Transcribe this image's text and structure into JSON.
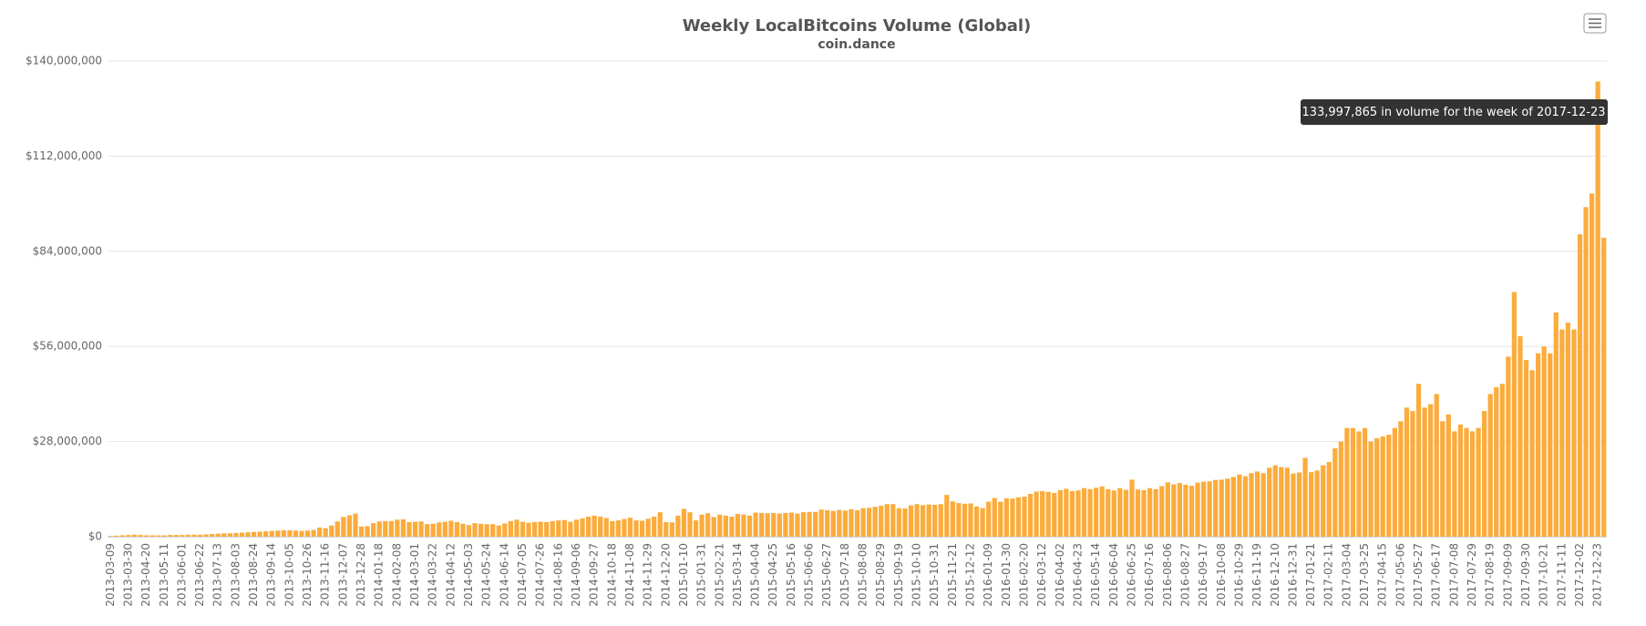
{
  "chart_data": {
    "type": "bar",
    "title": "Weekly LocalBitcoins Volume (Global)",
    "subtitle": "coin.dance",
    "tooltip": "133,997,865 in volume for the week of 2017-12-23",
    "color": "#fbac3c",
    "grid": true,
    "ylim": [
      0,
      140000000
    ],
    "yticks": [
      {
        "value": 0,
        "label": "$0"
      },
      {
        "value": 28000000,
        "label": "$28,000,000"
      },
      {
        "value": 56000000,
        "label": "$56,000,000"
      },
      {
        "value": 84000000,
        "label": "$84,000,000"
      },
      {
        "value": 112000000,
        "label": "$112,000,000"
      },
      {
        "value": 140000000,
        "label": "$140,000,000"
      }
    ],
    "categories": [
      "2013-03-09",
      null,
      null,
      "2013-03-30",
      null,
      null,
      "2013-04-20",
      null,
      null,
      "2013-05-11",
      null,
      null,
      "2013-06-01",
      null,
      null,
      "2013-06-22",
      null,
      null,
      "2013-07-13",
      null,
      null,
      "2013-08-03",
      null,
      null,
      "2013-08-24",
      null,
      null,
      "2013-09-14",
      null,
      null,
      "2013-10-05",
      null,
      null,
      "2013-10-26",
      null,
      null,
      "2013-11-16",
      null,
      null,
      "2013-12-07",
      null,
      null,
      "2013-12-28",
      null,
      null,
      "2014-01-18",
      null,
      null,
      "2014-02-08",
      null,
      null,
      "2014-03-01",
      null,
      null,
      "2014-03-22",
      null,
      null,
      "2014-04-12",
      null,
      null,
      "2014-05-03",
      null,
      null,
      "2014-05-24",
      null,
      null,
      "2014-06-14",
      null,
      null,
      "2014-07-05",
      null,
      null,
      "2014-07-26",
      null,
      null,
      "2014-08-16",
      null,
      null,
      "2014-09-06",
      null,
      null,
      "2014-09-27",
      null,
      null,
      "2014-10-18",
      null,
      null,
      "2014-11-08",
      null,
      null,
      "2014-11-29",
      null,
      null,
      "2014-12-20",
      null,
      null,
      "2015-01-10",
      null,
      null,
      "2015-01-31",
      null,
      null,
      "2015-02-21",
      null,
      null,
      "2015-03-14",
      null,
      null,
      "2015-04-04",
      null,
      null,
      "2015-04-25",
      null,
      null,
      "2015-05-16",
      null,
      null,
      "2015-06-06",
      null,
      null,
      "2015-06-27",
      null,
      null,
      "2015-07-18",
      null,
      null,
      "2015-08-08",
      null,
      null,
      "2015-08-29",
      null,
      null,
      "2015-09-19",
      null,
      null,
      "2015-10-10",
      null,
      null,
      "2015-10-31",
      null,
      null,
      "2015-11-21",
      null,
      null,
      "2015-12-12",
      null,
      null,
      "2016-01-09",
      null,
      null,
      "2016-01-30",
      null,
      null,
      "2016-02-20",
      null,
      null,
      "2016-03-12",
      null,
      null,
      "2016-04-02",
      null,
      null,
      "2016-04-23",
      null,
      null,
      "2016-05-14",
      null,
      null,
      "2016-06-04",
      null,
      null,
      "2016-06-25",
      null,
      null,
      "2016-07-16",
      null,
      null,
      "2016-08-06",
      null,
      null,
      "2016-08-27",
      null,
      null,
      "2016-09-17",
      null,
      null,
      "2016-10-08",
      null,
      null,
      "2016-10-29",
      null,
      null,
      "2016-11-19",
      null,
      null,
      "2016-12-10",
      null,
      null,
      "2016-12-31",
      null,
      null,
      "2017-01-21",
      null,
      null,
      "2017-02-11",
      null,
      null,
      "2017-03-04",
      null,
      null,
      "2017-03-25",
      null,
      null,
      "2017-04-15",
      null,
      null,
      "2017-05-06",
      null,
      null,
      "2017-05-27",
      null,
      null,
      "2017-06-17",
      null,
      null,
      "2017-07-08",
      null,
      null,
      "2017-07-29",
      null,
      null,
      "2017-08-19",
      null,
      null,
      "2017-09-09",
      null,
      null,
      "2017-09-30",
      null,
      null,
      "2017-10-21",
      null,
      null,
      "2017-11-11",
      null,
      null,
      "2017-12-02",
      null,
      null,
      "2017-12-23",
      null
    ],
    "values": [
      200000,
      300000,
      400000,
      500000,
      600000,
      500000,
      400000,
      400000,
      400000,
      400000,
      500000,
      500000,
      500000,
      600000,
      600000,
      600000,
      700000,
      800000,
      900000,
      1000000,
      1000000,
      1100000,
      1200000,
      1300000,
      1400000,
      1500000,
      1600000,
      1700000,
      1800000,
      1900000,
      1900000,
      1800000,
      1700000,
      1800000,
      2000000,
      2700000,
      2500000,
      3300000,
      4500000,
      5800000,
      6300000,
      6800000,
      3000000,
      3100000,
      4000000,
      4500000,
      4600000,
      4600000,
      5000000,
      5100000,
      4300000,
      4400000,
      4500000,
      3700000,
      3800000,
      4200000,
      4400000,
      4700000,
      4300000,
      3800000,
      3400000,
      4000000,
      3800000,
      3700000,
      3700000,
      3300000,
      3900000,
      4600000,
      5000000,
      4400000,
      4100000,
      4300000,
      4400000,
      4300000,
      4600000,
      4800000,
      4900000,
      4400000,
      5000000,
      5400000,
      5900000,
      6200000,
      5900000,
      5500000,
      4600000,
      4800000,
      5200000,
      5600000,
      4800000,
      4700000,
      5300000,
      5900000,
      7200000,
      4300000,
      4200000,
      6200000,
      8200000,
      7200000,
      4800000,
      6500000,
      6900000,
      5800000,
      6500000,
      6200000,
      5900000,
      6700000,
      6500000,
      6200000,
      7100000,
      7000000,
      6900000,
      7000000,
      6800000,
      7000000,
      7100000,
      6800000,
      7200000,
      7300000,
      7300000,
      8000000,
      7800000,
      7600000,
      7900000,
      7700000,
      8100000,
      7800000,
      8400000,
      8500000,
      8800000,
      9100000,
      9600000,
      9600000,
      8400000,
      8300000,
      9200000,
      9600000,
      9300000,
      9500000,
      9400000,
      9600000,
      12300000,
      10400000,
      9900000,
      9700000,
      9800000,
      8900000,
      8400000,
      10300000,
      11400000,
      10300000,
      11300000,
      11200000,
      11600000,
      11800000,
      12600000,
      13300000,
      13400000,
      13200000,
      12900000,
      13700000,
      14100000,
      13400000,
      13600000,
      14300000,
      14000000,
      14400000,
      14800000,
      14000000,
      13600000,
      14300000,
      13800000,
      16800000,
      13900000,
      13700000,
      14300000,
      14000000,
      14900000,
      16000000,
      15400000,
      15800000,
      15300000,
      15000000,
      15900000,
      16200000,
      16300000,
      16700000,
      16800000,
      17100000,
      17600000,
      18300000,
      17800000,
      18700000,
      19200000,
      18700000,
      20300000,
      21000000,
      20500000,
      20300000,
      18600000,
      18900000,
      23200000,
      19000000,
      19500000,
      21000000,
      22000000,
      26000000,
      28000000,
      32000000,
      32000000,
      31000000,
      32000000,
      28000000,
      29000000,
      29500000,
      30000000,
      32000000,
      34000000,
      38000000,
      37000000,
      45000000,
      38000000,
      39000000,
      42000000,
      34000000,
      36000000,
      31000000,
      33000000,
      32000000,
      31000000,
      32000000,
      37000000,
      42000000,
      44000000,
      45000000,
      53000000,
      72000000,
      59000000,
      52000000,
      49000000,
      54000000,
      56000000,
      54000000,
      66000000,
      61000000,
      63000000,
      61000000,
      89000000,
      97000000,
      101000000,
      133997865,
      88000000
    ]
  }
}
